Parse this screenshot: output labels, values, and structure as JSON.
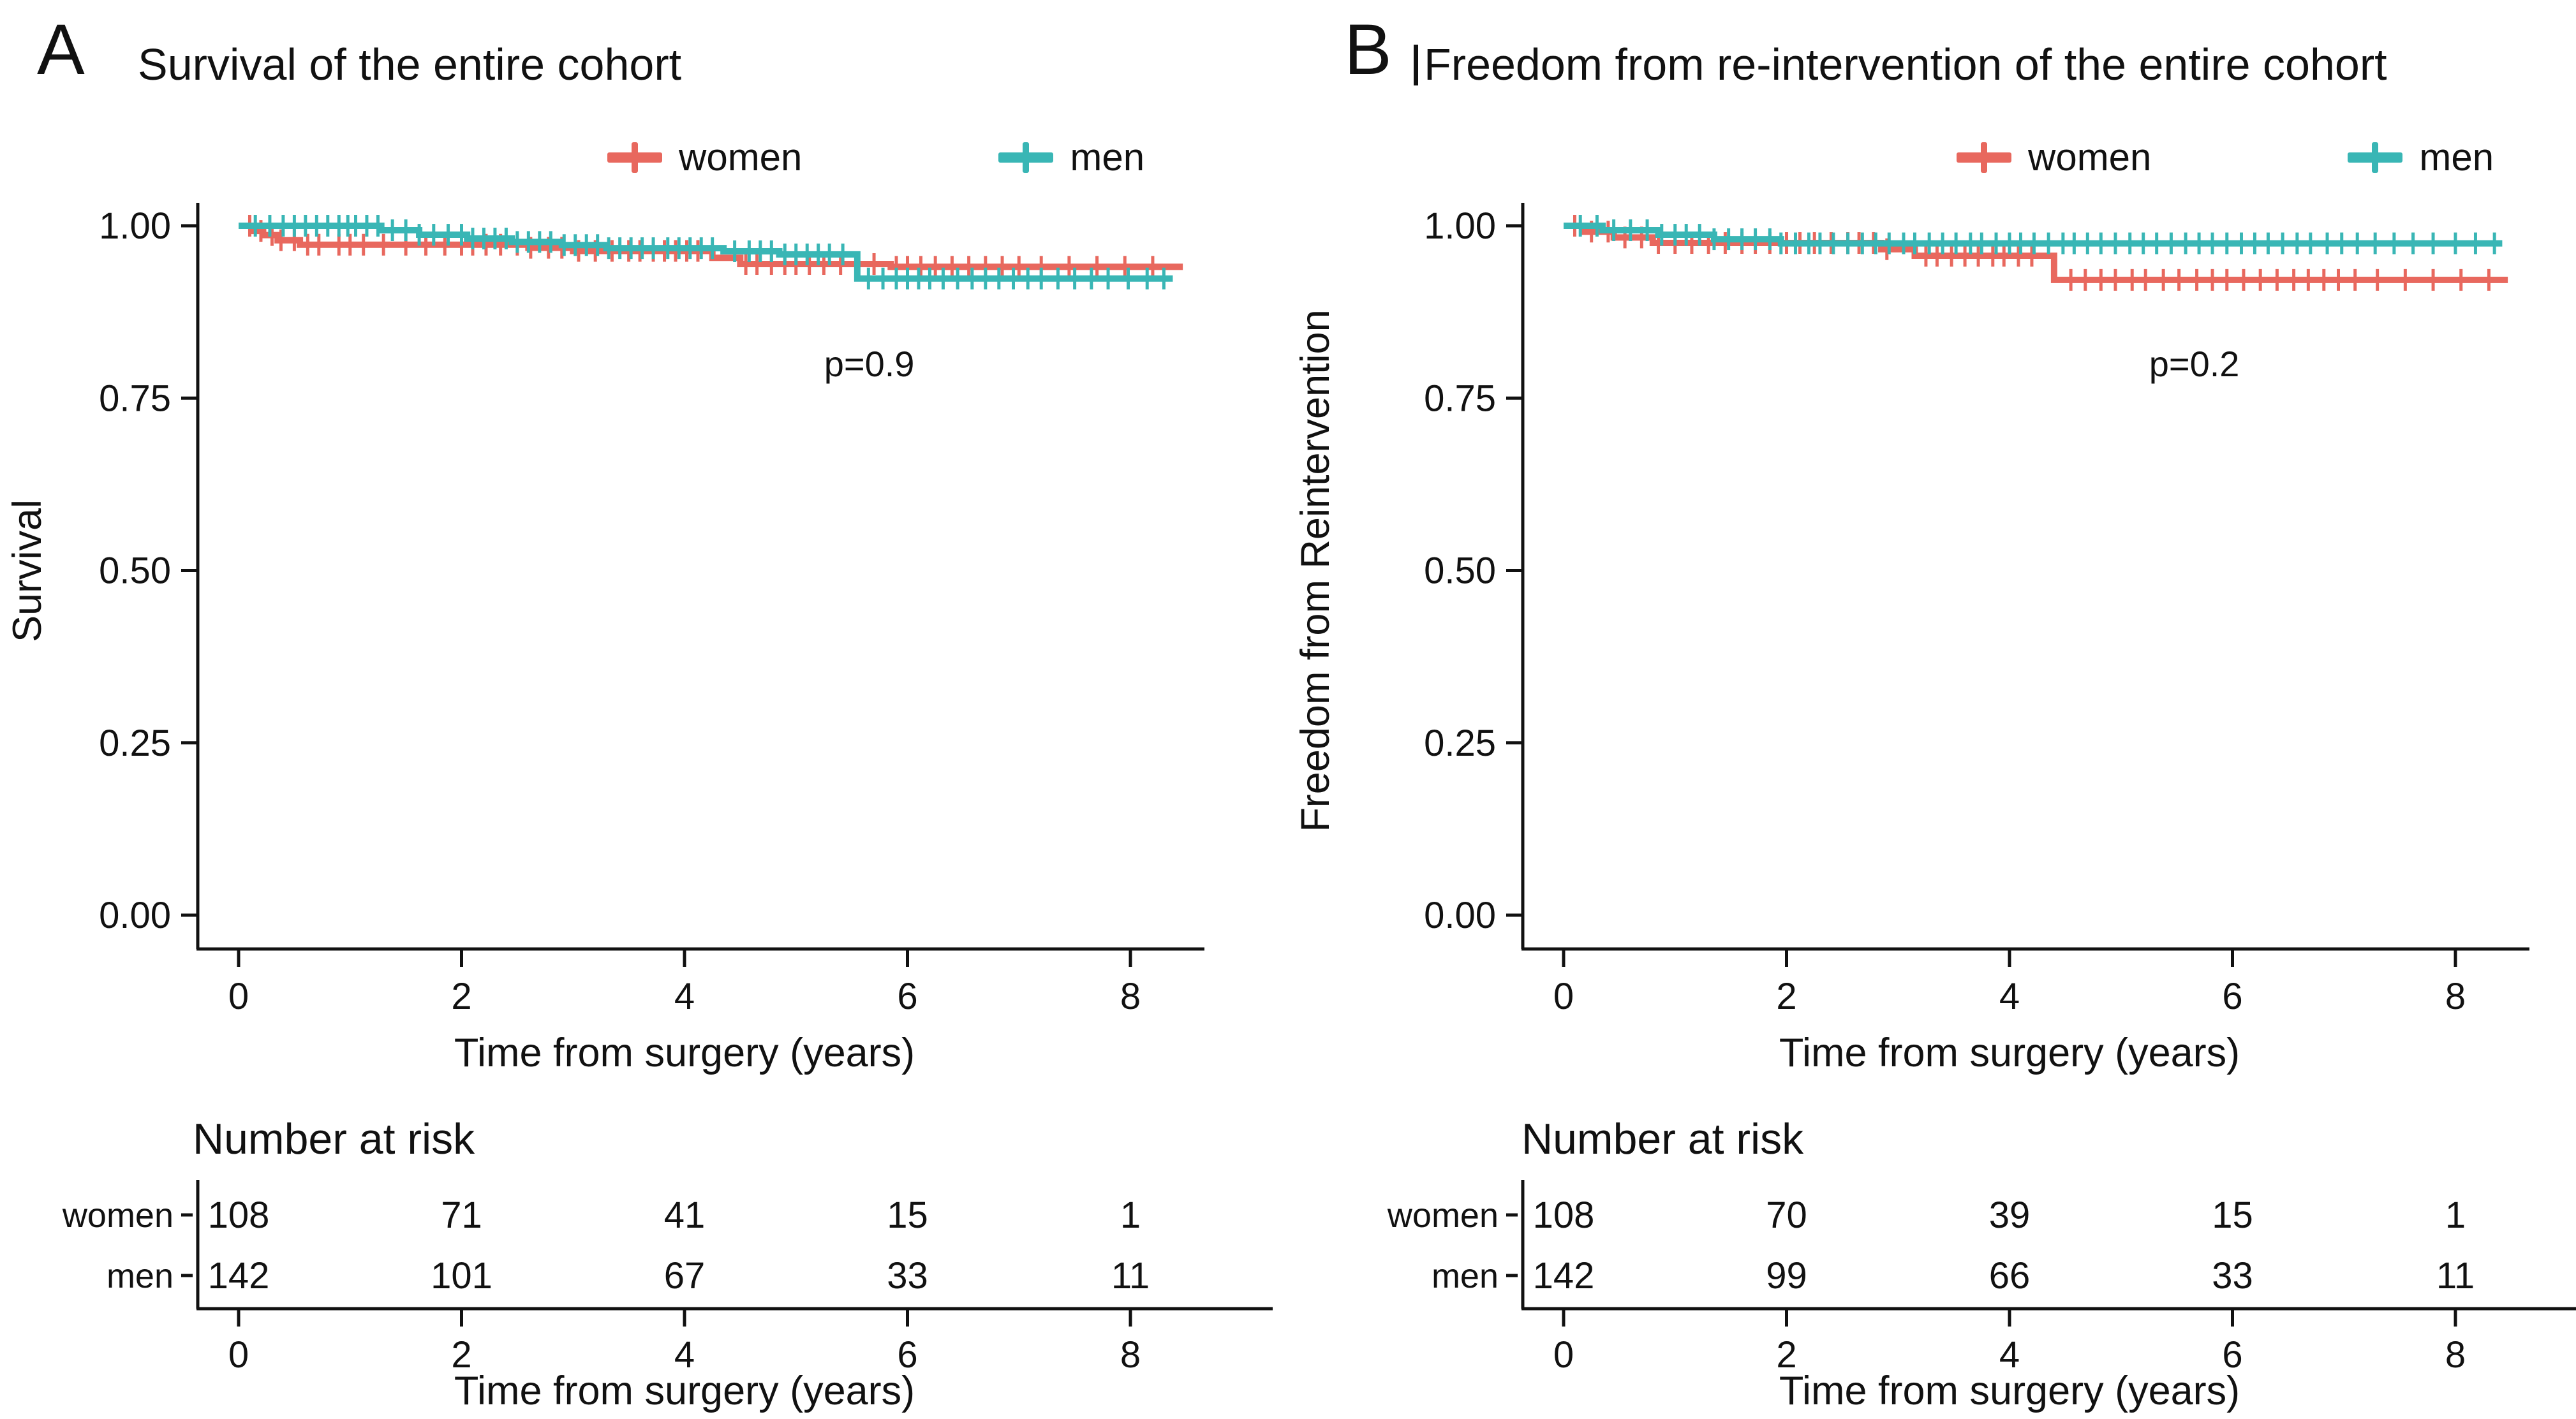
{
  "figure": {
    "background": "#ffffff",
    "text_color": "#111111"
  },
  "chart_data": [
    {
      "type": "line",
      "subtype": "kaplan-meier-step",
      "letter": "A",
      "title": "Survival of the entire cohort",
      "ylabel": "Survival",
      "xlabel": "Time from surgery (years)",
      "p_label": "p=0.9",
      "p_position": {
        "x": 5.6,
        "y": 0.8
      },
      "xlim": [
        0,
        8.6
      ],
      "ylim": [
        0,
        1.05
      ],
      "grid": false,
      "legend_position": "top",
      "xticks": [
        0,
        2,
        4,
        6,
        8
      ],
      "yticks": [
        "1.00",
        "0.75",
        "0.50",
        "0.25",
        "0.00"
      ],
      "series": [
        {
          "name": "women",
          "color": "#E8685E",
          "steps": [
            [
              0,
              1.0
            ],
            [
              0.12,
              0.9925
            ],
            [
              0.22,
              0.9865
            ],
            [
              0.35,
              0.979
            ],
            [
              0.55,
              0.9725
            ],
            [
              2.6,
              0.968
            ],
            [
              3.0,
              0.9635
            ],
            [
              4.25,
              0.9535
            ],
            [
              4.5,
              0.9445
            ],
            [
              5.85,
              0.9405
            ],
            [
              8.47,
              0.9405
            ]
          ],
          "censors": [
            0.1,
            0.2,
            0.3,
            0.38,
            0.5,
            0.62,
            0.72,
            0.9,
            1.0,
            1.12,
            1.3,
            1.5,
            1.68,
            1.85,
            2.0,
            2.1,
            2.22,
            2.35,
            2.5,
            2.62,
            2.78,
            2.9,
            3.05,
            3.2,
            3.35,
            3.5,
            3.6,
            3.72,
            3.82,
            3.92,
            4.02,
            4.12,
            4.55,
            4.65,
            4.78,
            4.9,
            5.0,
            5.12,
            5.25,
            5.4,
            5.55,
            5.7,
            5.9,
            6.0,
            6.12,
            6.25,
            6.4,
            6.55,
            6.7,
            6.85,
            7.0,
            7.2,
            7.45,
            7.7,
            7.95,
            8.2
          ]
        },
        {
          "name": "men",
          "color": "#39B6B5",
          "steps": [
            [
              0,
              1.0
            ],
            [
              1.28,
              0.9935
            ],
            [
              1.62,
              0.987
            ],
            [
              2.05,
              0.9815
            ],
            [
              2.45,
              0.9765
            ],
            [
              2.9,
              0.972
            ],
            [
              3.3,
              0.9675
            ],
            [
              4.35,
              0.963
            ],
            [
              4.85,
              0.9585
            ],
            [
              5.55,
              0.9235
            ],
            [
              8.38,
              0.9235
            ]
          ],
          "censors": [
            0.15,
            0.28,
            0.4,
            0.5,
            0.6,
            0.7,
            0.8,
            0.9,
            0.98,
            1.05,
            1.15,
            1.25,
            1.38,
            1.5,
            1.62,
            1.75,
            1.88,
            2.0,
            2.1,
            2.2,
            2.3,
            2.4,
            2.5,
            2.6,
            2.7,
            2.8,
            2.92,
            3.02,
            3.12,
            3.22,
            3.32,
            3.42,
            3.52,
            3.62,
            3.72,
            3.85,
            3.95,
            4.05,
            4.15,
            4.25,
            4.45,
            4.58,
            4.68,
            4.78,
            4.9,
            5.0,
            5.1,
            5.2,
            5.3,
            5.42,
            5.65,
            5.78,
            5.9,
            6.0,
            6.1,
            6.2,
            6.32,
            6.45,
            6.58,
            6.7,
            6.82,
            6.95,
            7.08,
            7.2,
            7.35,
            7.5,
            7.65,
            7.8,
            7.98,
            8.15,
            8.3
          ]
        }
      ],
      "risk_table": {
        "heading": "Number at risk",
        "xlabel": "Time from surgery (years)",
        "xticks": [
          0,
          2,
          4,
          6,
          8
        ],
        "rows": [
          {
            "label": "women",
            "values": [
              108,
              71,
              41,
              15,
              1
            ]
          },
          {
            "label": "men",
            "values": [
              142,
              101,
              67,
              33,
              11
            ]
          }
        ]
      }
    },
    {
      "type": "line",
      "subtype": "kaplan-meier-step",
      "letter": "B",
      "title": "Freedom from re-intervention of the entire cohort",
      "ylabel": "Freedom from Reintervention",
      "xlabel": "Time from surgery (years)",
      "p_label": "p=0.2",
      "p_position": {
        "x": 5.6,
        "y": 0.8
      },
      "xlim": [
        0,
        8.6
      ],
      "ylim": [
        0,
        1.05
      ],
      "grid": false,
      "legend_position": "top",
      "xticks": [
        0,
        2,
        4,
        6,
        8
      ],
      "yticks": [
        "1.00",
        "0.75",
        "0.50",
        "0.25",
        "0.00"
      ],
      "series": [
        {
          "name": "women",
          "color": "#E8685E",
          "steps": [
            [
              0,
              1.0
            ],
            [
              0.18,
              0.9915
            ],
            [
              0.45,
              0.983
            ],
            [
              0.8,
              0.975
            ],
            [
              2.85,
              0.966
            ],
            [
              3.15,
              0.9565
            ],
            [
              4.4,
              0.9215
            ],
            [
              8.47,
              0.9215
            ]
          ],
          "censors": [
            0.1,
            0.25,
            0.4,
            0.55,
            0.7,
            0.85,
            1.0,
            1.15,
            1.3,
            1.45,
            1.6,
            1.72,
            1.85,
            2.0,
            2.12,
            2.25,
            2.4,
            2.55,
            2.65,
            2.78,
            2.9,
            3.25,
            3.35,
            3.48,
            3.6,
            3.72,
            3.85,
            3.95,
            4.08,
            4.2,
            4.55,
            4.68,
            4.82,
            4.95,
            5.1,
            5.22,
            5.38,
            5.52,
            5.68,
            5.82,
            5.95,
            6.1,
            6.25,
            6.4,
            6.55,
            6.68,
            6.82,
            6.95,
            7.1,
            7.3,
            7.55,
            7.8,
            8.05,
            8.3
          ]
        },
        {
          "name": "men",
          "color": "#39B6B5",
          "steps": [
            [
              0,
              1.0
            ],
            [
              0.35,
              0.9935
            ],
            [
              0.85,
              0.987
            ],
            [
              1.35,
              0.9805
            ],
            [
              1.95,
              0.9745
            ],
            [
              8.42,
              0.9745
            ]
          ],
          "censors": [
            0.15,
            0.3,
            0.45,
            0.6,
            0.75,
            0.88,
            1.0,
            1.1,
            1.22,
            1.35,
            1.48,
            1.6,
            1.72,
            1.85,
            1.95,
            2.08,
            2.2,
            2.3,
            2.42,
            2.55,
            2.68,
            2.8,
            2.92,
            3.05,
            3.15,
            3.28,
            3.4,
            3.52,
            3.65,
            3.75,
            3.88,
            4.0,
            4.1,
            4.22,
            4.35,
            4.48,
            4.58,
            4.7,
            4.82,
            4.95,
            5.08,
            5.2,
            5.32,
            5.45,
            5.58,
            5.7,
            5.82,
            5.95,
            6.08,
            6.2,
            6.32,
            6.45,
            6.58,
            6.7,
            6.85,
            6.98,
            7.12,
            7.28,
            7.45,
            7.62,
            7.8,
            8.0,
            8.18,
            8.35
          ]
        }
      ],
      "risk_table": {
        "heading": "Number at risk",
        "xlabel": "Time from surgery (years)",
        "xticks": [
          0,
          2,
          4,
          6,
          8
        ],
        "rows": [
          {
            "label": "women",
            "values": [
              108,
              70,
              39,
              15,
              1
            ]
          },
          {
            "label": "men",
            "values": [
              142,
              99,
              66,
              33,
              11
            ]
          }
        ]
      }
    }
  ]
}
